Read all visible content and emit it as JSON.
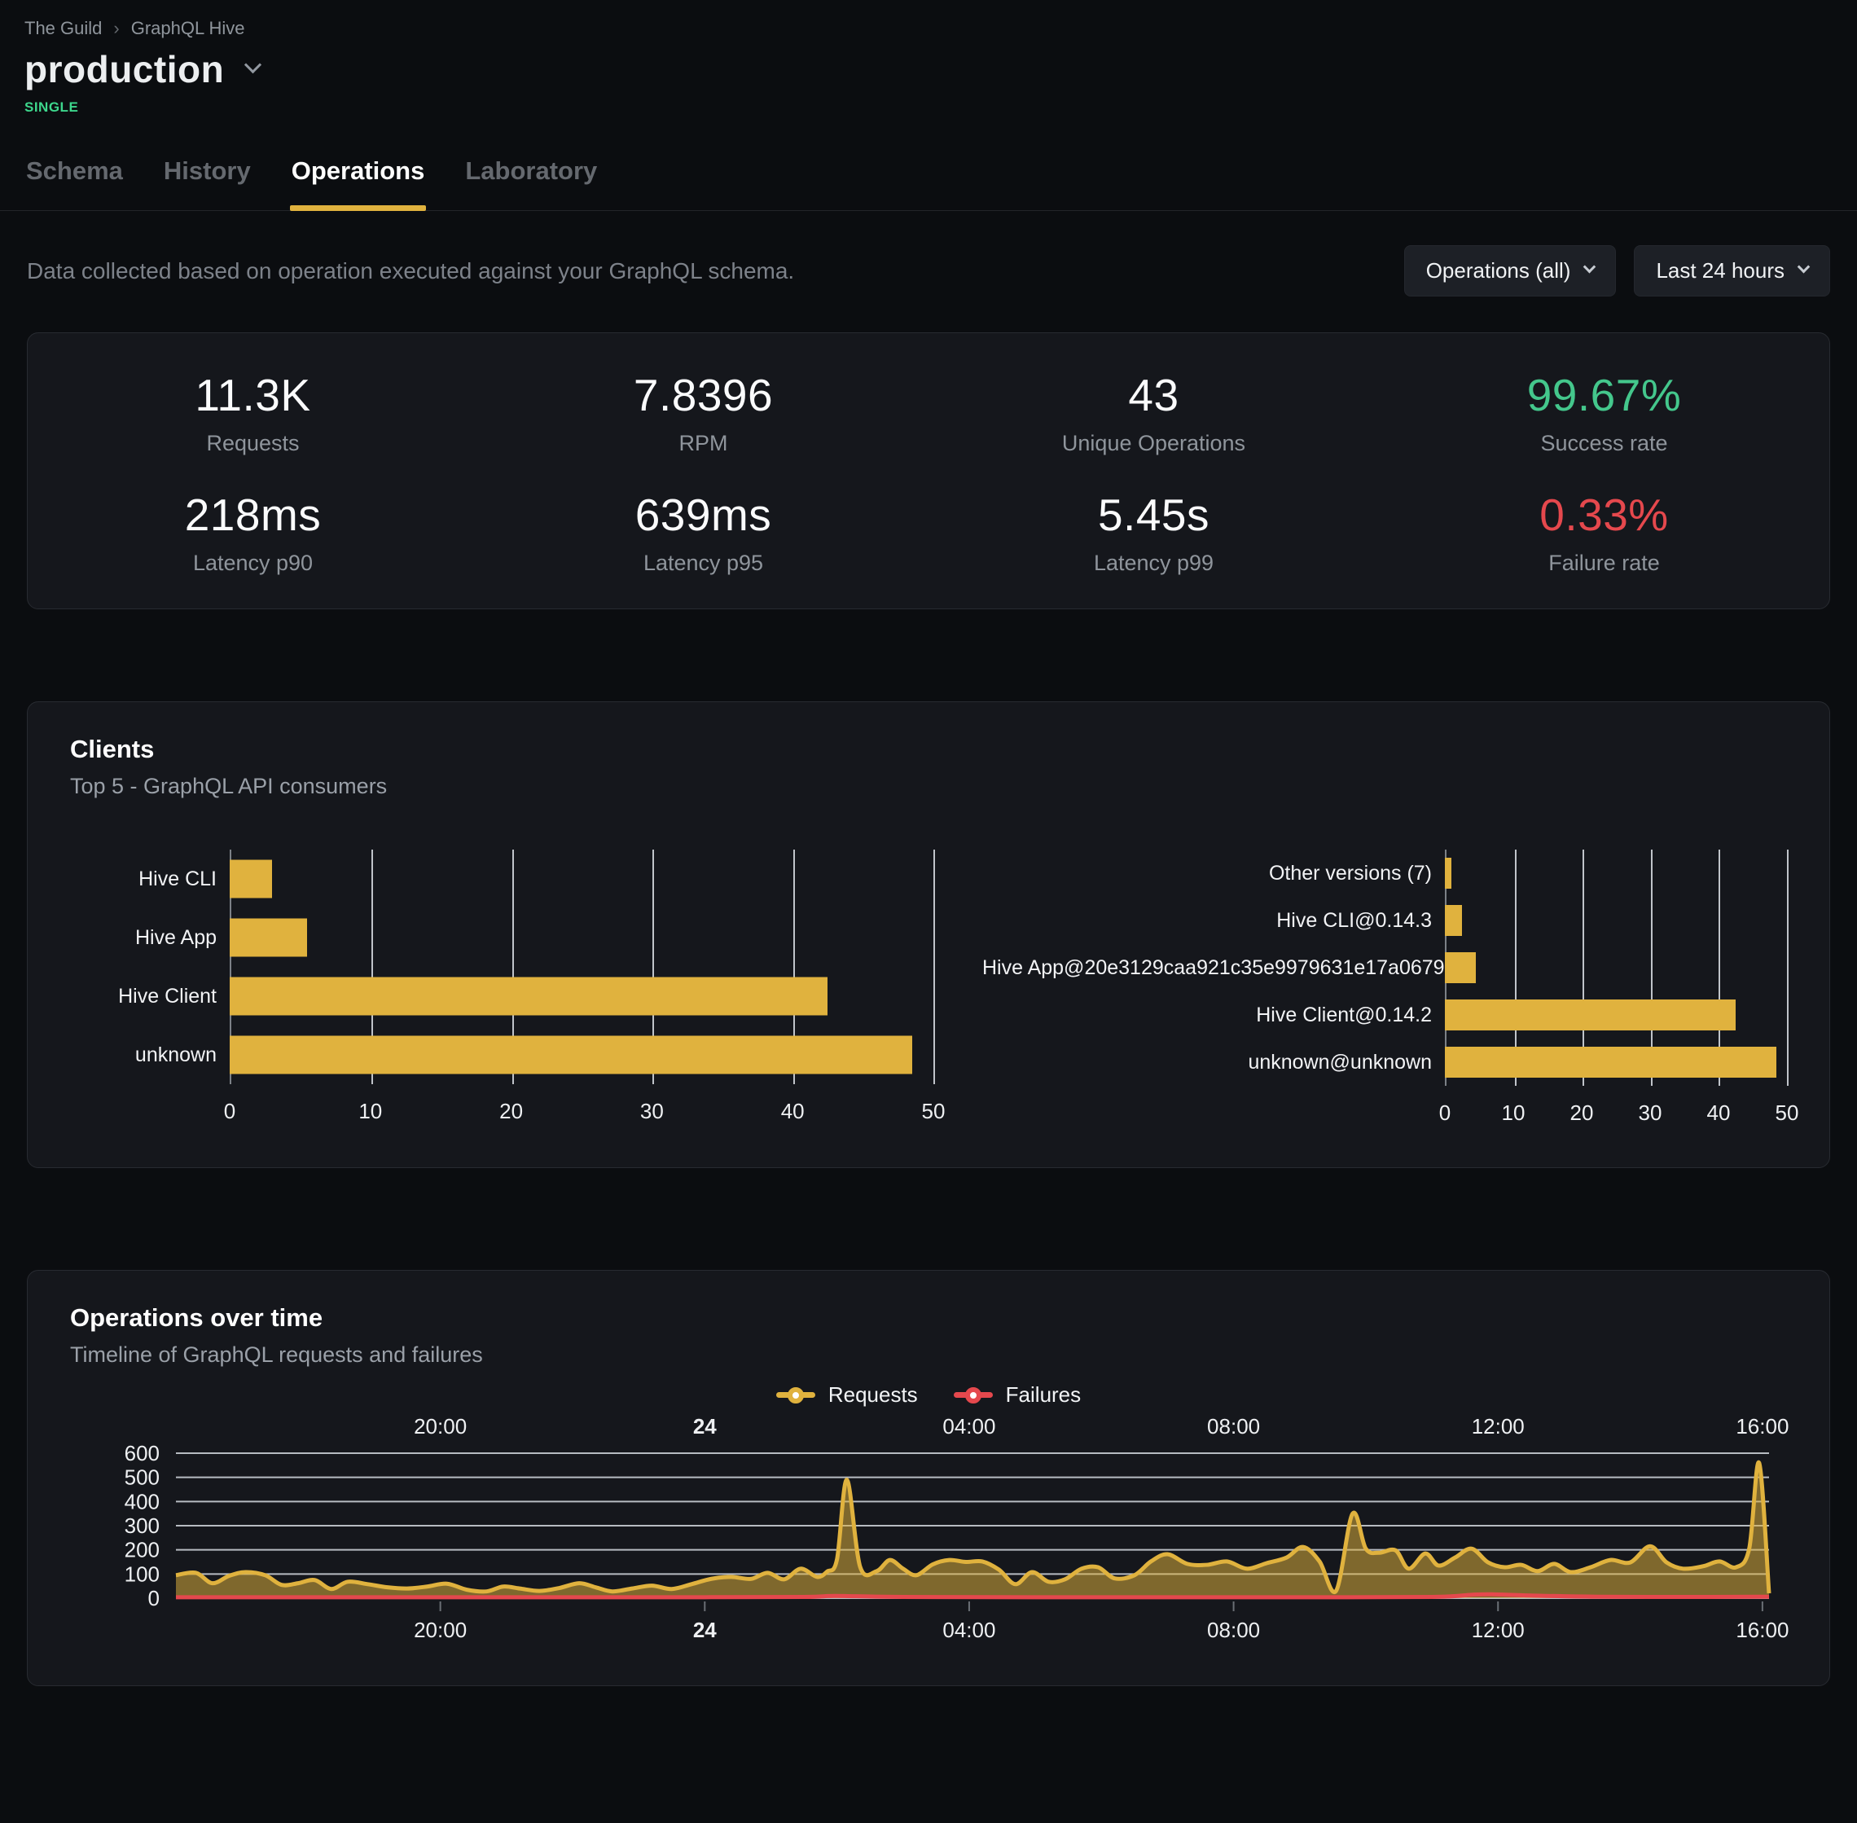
{
  "breadcrumb": {
    "items": [
      "The Guild",
      "GraphQL Hive"
    ],
    "separator": "›"
  },
  "header": {
    "title": "production",
    "badge": "SINGLE"
  },
  "tabs": [
    {
      "label": "Schema",
      "active": false
    },
    {
      "label": "History",
      "active": false
    },
    {
      "label": "Operations",
      "active": true
    },
    {
      "label": "Laboratory",
      "active": false
    }
  ],
  "controls": {
    "description": "Data collected based on operation executed against your GraphQL schema.",
    "filters": [
      {
        "label": "Operations (all)"
      },
      {
        "label": "Last 24 hours"
      }
    ]
  },
  "stats": {
    "items": [
      {
        "value": "11.3K",
        "label": "Requests"
      },
      {
        "value": "7.8396",
        "label": "RPM"
      },
      {
        "value": "43",
        "label": "Unique Operations"
      },
      {
        "value": "99.67%",
        "label": "Success rate",
        "color": "success"
      },
      {
        "value": "218ms",
        "label": "Latency p90"
      },
      {
        "value": "639ms",
        "label": "Latency p95"
      },
      {
        "value": "5.45s",
        "label": "Latency p99"
      },
      {
        "value": "0.33%",
        "label": "Failure rate",
        "color": "danger"
      }
    ]
  },
  "clients_panel": {
    "title": "Clients",
    "subtitle": "Top 5 - GraphQL API consumers"
  },
  "operations_panel": {
    "title": "Operations over time",
    "subtitle": "Timeline of GraphQL requests and failures",
    "legend": [
      {
        "label": "Requests",
        "color": "#e0b23e"
      },
      {
        "label": "Failures",
        "color": "#e5484d"
      }
    ]
  },
  "theme": {
    "background": "#0b0d10",
    "panel": "#15171c",
    "panel_border": "#282b31",
    "accent": "#e0b23e",
    "success": "#44c78c",
    "danger": "#e5484d",
    "badge": "#3dd68c",
    "text": "#eceef0",
    "muted": "#8f959c",
    "dim": "#65696f",
    "grid": "#c9ced4",
    "button_bg": "#1d2026",
    "area_fill": "rgba(224,178,62,0.52)"
  },
  "chart_data": [
    {
      "type": "bar",
      "orientation": "horizontal",
      "title": "Clients (by name)",
      "categories": [
        "Hive CLI",
        "Hive App",
        "Hive Client",
        "unknown"
      ],
      "values": [
        3,
        5.5,
        42.5,
        48.5
      ],
      "xlim": [
        0,
        50
      ],
      "xticks": [
        0,
        10,
        20,
        30,
        40,
        50
      ],
      "grid": true,
      "legend_position": "none",
      "bar_color": "#e0b23e"
    },
    {
      "type": "bar",
      "orientation": "horizontal",
      "title": "Clients (by version)",
      "categories": [
        "Other versions (7)",
        "Hive CLI@0.14.3",
        "Hive App@20e3129caa921c35e9979631e17a0679",
        "Hive Client@0.14.2",
        "unknown@unknown"
      ],
      "values": [
        1,
        2.5,
        4.5,
        42.5,
        48.5
      ],
      "xlim": [
        0,
        50
      ],
      "xticks": [
        0,
        10,
        20,
        30,
        40,
        50
      ],
      "grid": true,
      "legend_position": "none",
      "bar_color": "#e0b23e"
    },
    {
      "type": "area",
      "title": "Operations over time",
      "x_unit": "hours since window start (window 16:00 → 16:00, last 24 hours)",
      "xlim": [
        0,
        24.1
      ],
      "ylim": [
        0,
        600
      ],
      "yticks": [
        0,
        100,
        200,
        300,
        400,
        500,
        600
      ],
      "xticks": [
        {
          "t": 4,
          "label": "20:00",
          "bold": false
        },
        {
          "t": 8,
          "label": "24",
          "bold": true
        },
        {
          "t": 12,
          "label": "04:00",
          "bold": false
        },
        {
          "t": 16,
          "label": "08:00",
          "bold": false
        },
        {
          "t": 20,
          "label": "12:00",
          "bold": false
        },
        {
          "t": 24,
          "label": "16:00",
          "bold": false
        }
      ],
      "grid": true,
      "legend_position": "top-center",
      "series": [
        {
          "name": "Requests",
          "color": "#e0b23e",
          "fill": "rgba(224,178,62,0.52)",
          "points": [
            [
              0,
              95
            ],
            [
              0.3,
              105
            ],
            [
              0.55,
              62
            ],
            [
              0.8,
              92
            ],
            [
              1.05,
              108
            ],
            [
              1.35,
              95
            ],
            [
              1.6,
              55
            ],
            [
              1.85,
              62
            ],
            [
              2.1,
              75
            ],
            [
              2.35,
              38
            ],
            [
              2.6,
              68
            ],
            [
              2.9,
              58
            ],
            [
              3.2,
              45
            ],
            [
              3.5,
              40
            ],
            [
              3.8,
              48
            ],
            [
              4.1,
              60
            ],
            [
              4.4,
              35
            ],
            [
              4.7,
              28
            ],
            [
              4.95,
              48
            ],
            [
              5.2,
              40
            ],
            [
              5.5,
              30
            ],
            [
              5.8,
              42
            ],
            [
              6.1,
              62
            ],
            [
              6.35,
              45
            ],
            [
              6.6,
              28
            ],
            [
              6.9,
              40
            ],
            [
              7.2,
              52
            ],
            [
              7.5,
              38
            ],
            [
              7.8,
              58
            ],
            [
              8.1,
              80
            ],
            [
              8.4,
              88
            ],
            [
              8.7,
              80
            ],
            [
              8.95,
              105
            ],
            [
              9.2,
              78
            ],
            [
              9.45,
              122
            ],
            [
              9.7,
              88
            ],
            [
              9.85,
              110
            ],
            [
              10,
              160
            ],
            [
              10.15,
              490
            ],
            [
              10.35,
              130
            ],
            [
              10.6,
              112
            ],
            [
              10.8,
              158
            ],
            [
              11,
              122
            ],
            [
              11.2,
              95
            ],
            [
              11.45,
              140
            ],
            [
              11.7,
              158
            ],
            [
              11.95,
              150
            ],
            [
              12.2,
              152
            ],
            [
              12.45,
              118
            ],
            [
              12.7,
              58
            ],
            [
              12.95,
              108
            ],
            [
              13.2,
              68
            ],
            [
              13.45,
              78
            ],
            [
              13.7,
              122
            ],
            [
              13.95,
              128
            ],
            [
              14.2,
              82
            ],
            [
              14.5,
              95
            ],
            [
              14.75,
              152
            ],
            [
              15,
              182
            ],
            [
              15.3,
              142
            ],
            [
              15.6,
              138
            ],
            [
              15.9,
              152
            ],
            [
              16.2,
              122
            ],
            [
              16.5,
              145
            ],
            [
              16.8,
              168
            ],
            [
              17.05,
              212
            ],
            [
              17.3,
              152
            ],
            [
              17.55,
              30
            ],
            [
              17.8,
              350
            ],
            [
              18,
              205
            ],
            [
              18.2,
              188
            ],
            [
              18.45,
              198
            ],
            [
              18.65,
              122
            ],
            [
              18.9,
              185
            ],
            [
              19.1,
              135
            ],
            [
              19.35,
              168
            ],
            [
              19.6,
              205
            ],
            [
              19.85,
              148
            ],
            [
              20.1,
              128
            ],
            [
              20.35,
              138
            ],
            [
              20.6,
              112
            ],
            [
              20.85,
              142
            ],
            [
              21.1,
              108
            ],
            [
              21.4,
              128
            ],
            [
              21.7,
              158
            ],
            [
              22,
              148
            ],
            [
              22.3,
              215
            ],
            [
              22.55,
              148
            ],
            [
              22.8,
              122
            ],
            [
              23.1,
              132
            ],
            [
              23.35,
              152
            ],
            [
              23.6,
              128
            ],
            [
              23.8,
              205
            ],
            [
              23.95,
              560
            ],
            [
              24.1,
              20
            ]
          ]
        },
        {
          "name": "Failures",
          "color": "#e5484d",
          "fill": "none",
          "points": [
            [
              0,
              4
            ],
            [
              2,
              4
            ],
            [
              4,
              4
            ],
            [
              6,
              4
            ],
            [
              8,
              4
            ],
            [
              9.5,
              5
            ],
            [
              9.9,
              9
            ],
            [
              10.3,
              8
            ],
            [
              11,
              5
            ],
            [
              13,
              4
            ],
            [
              15,
              4
            ],
            [
              17,
              4
            ],
            [
              19,
              5
            ],
            [
              19.6,
              14
            ],
            [
              19.9,
              16
            ],
            [
              20.5,
              11
            ],
            [
              21.5,
              6
            ],
            [
              23,
              5
            ],
            [
              24.1,
              6
            ]
          ]
        }
      ]
    }
  ]
}
